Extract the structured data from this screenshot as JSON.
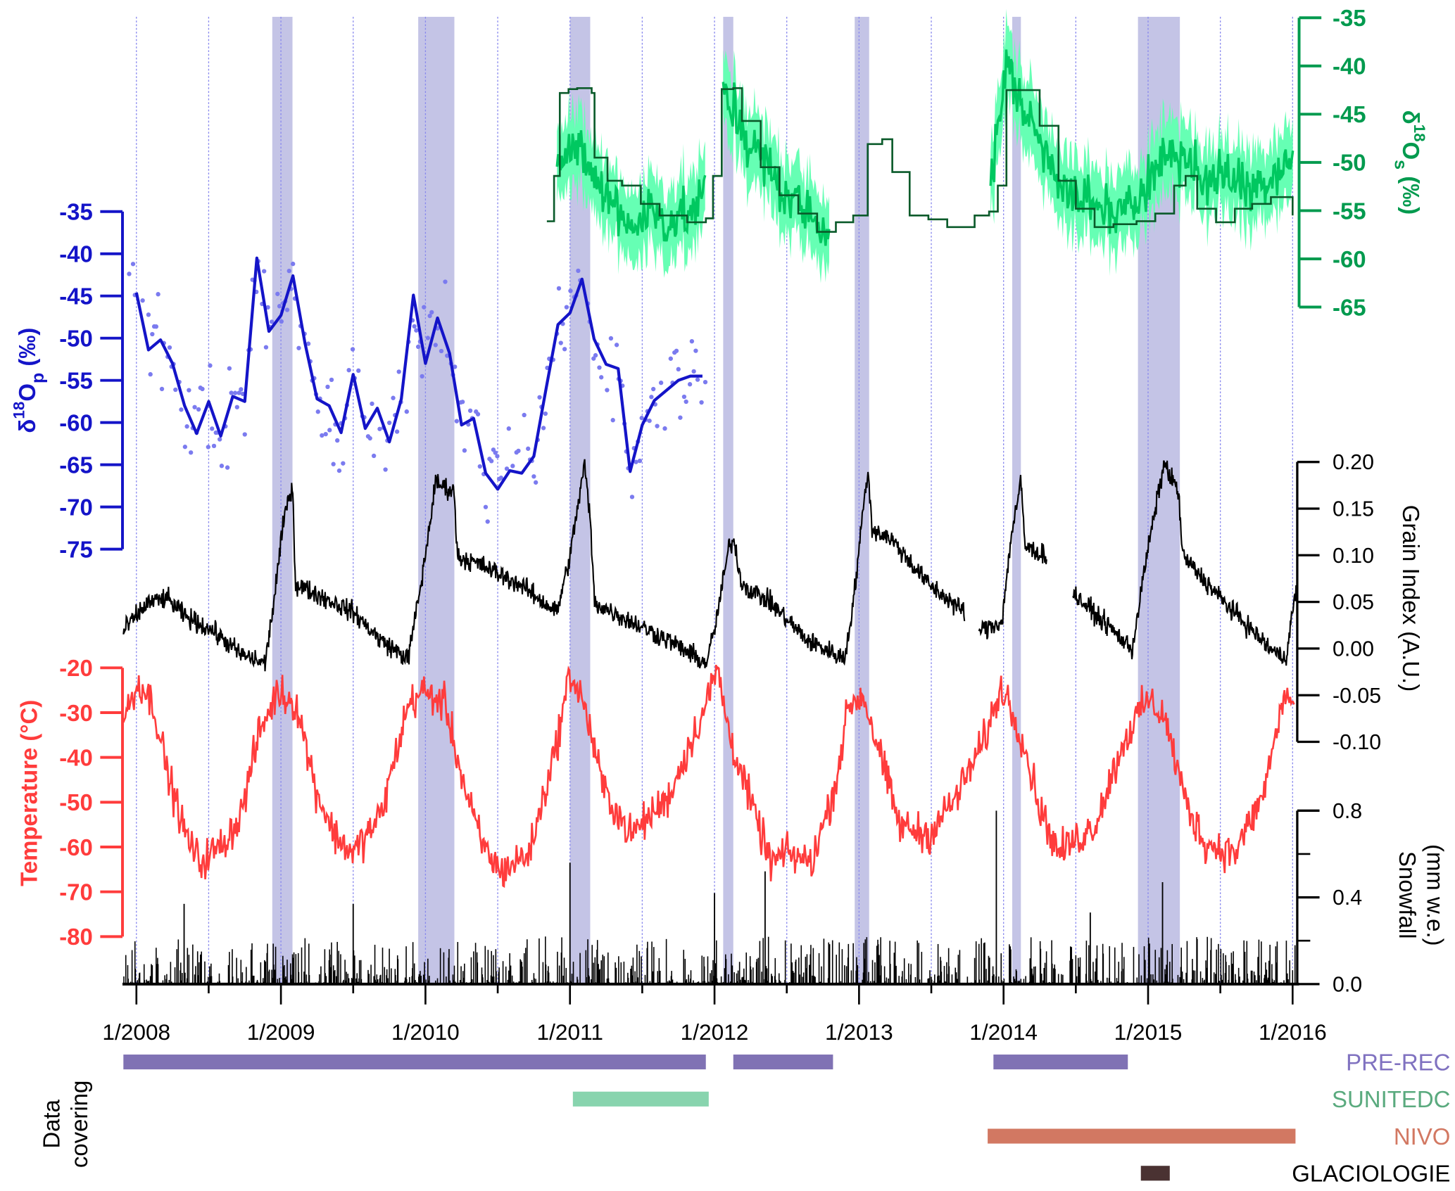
{
  "chart_data": {
    "type": "line",
    "x_axis": {
      "range": [
        2007.91,
        2016.03
      ],
      "tick_labels": [
        "1/2008",
        "1/2009",
        "1/2010",
        "1/2011",
        "1/2012",
        "1/2013",
        "1/2014",
        "1/2015",
        "1/2016"
      ],
      "tick_years": [
        2008,
        2009,
        2010,
        2011,
        2012,
        2013,
        2014,
        2015,
        2016
      ],
      "gridlines": "half-yearly dotted"
    },
    "shaded_periods": [
      [
        2008.94,
        2009.08
      ],
      [
        2009.95,
        2010.2
      ],
      [
        2011.0,
        2011.14
      ],
      [
        2012.06,
        2012.13
      ],
      [
        2012.97,
        2013.07
      ],
      [
        2014.06,
        2014.12
      ],
      [
        2014.93,
        2015.22
      ]
    ],
    "d18Op": {
      "label": {
        "prefix": "δ",
        "sup": "18",
        "main": "O",
        "sub": "p",
        "suffix": " (‰)"
      },
      "color": "#1414c8",
      "dot_color": "#7b7bef",
      "ticks": [
        -35,
        -40,
        -45,
        -50,
        -55,
        -60,
        -65,
        -70,
        -75
      ],
      "range": [
        -75,
        -35
      ],
      "monthly_start": 2008.0,
      "monthly_values": [
        -44.6,
        -51.4,
        -50.2,
        -53,
        -58,
        -61.3,
        -57.5,
        -61.6,
        -56.9,
        -57.5,
        -40.5,
        -49.2,
        -47.3,
        -42.6,
        -50.6,
        -57.2,
        -58,
        -61.2,
        -54.3,
        -60.7,
        -58.3,
        -62.3,
        -57.2,
        -44.9,
        -53,
        -47.6,
        -51.8,
        -60.3,
        -59.5,
        -66,
        -67.9,
        -65.7,
        -66,
        -64,
        -56.1,
        -48.4,
        -47,
        -43,
        -50.1,
        -53.1,
        -53.6,
        -65.8,
        -60.3,
        -57.4,
        -56.2,
        -55,
        -54.5,
        -54.5
      ]
    },
    "d18Os": {
      "label": {
        "prefix": "δ",
        "sup": "18",
        "main": "O",
        "sub": "s",
        "suffix": " (‰)"
      },
      "color": "#009a4e",
      "mean_color": "#00c860",
      "band_color": "#66ffb4",
      "model_color": "#0a5a2a",
      "ticks": [
        -35,
        -40,
        -45,
        -50,
        -55,
        -60,
        -65
      ],
      "range": [
        -65,
        -35
      ],
      "mean_segments": [
        [
          [
            2010.91,
            -49.5
          ],
          [
            2011.02,
            -48.1
          ],
          [
            2011.17,
            -51.9
          ],
          [
            2011.29,
            -54.3
          ],
          [
            2011.42,
            -56.7
          ],
          [
            2011.55,
            -54.8
          ],
          [
            2011.68,
            -56.2
          ],
          [
            2011.81,
            -55.3
          ],
          [
            2011.94,
            -53.4
          ]
        ],
        [
          [
            2012.06,
            -42.8
          ],
          [
            2012.19,
            -46.6
          ],
          [
            2012.32,
            -49.5
          ],
          [
            2012.45,
            -52.4
          ],
          [
            2012.58,
            -54.3
          ],
          [
            2012.71,
            -56.2
          ],
          [
            2012.8,
            -57.2
          ]
        ],
        [
          [
            2013.91,
            -52.4
          ],
          [
            2014.02,
            -39.9
          ],
          [
            2014.12,
            -43.7
          ],
          [
            2014.25,
            -47.6
          ],
          [
            2014.38,
            -51.4
          ],
          [
            2014.5,
            -53.8
          ],
          [
            2014.63,
            -54.3
          ],
          [
            2014.76,
            -55.3
          ],
          [
            2014.89,
            -54.8
          ],
          [
            2015.02,
            -51.0
          ],
          [
            2015.15,
            -48.6
          ],
          [
            2015.27,
            -49.5
          ],
          [
            2015.4,
            -52.4
          ],
          [
            2015.53,
            -51.4
          ],
          [
            2015.66,
            -51.9
          ],
          [
            2015.79,
            -52.4
          ],
          [
            2015.92,
            -50.0
          ],
          [
            2016.01,
            -49.5
          ]
        ]
      ],
      "band_half_width": 3,
      "model_steps": [
        [
          2010.84,
          -56.1
        ],
        [
          2010.89,
          -51.4
        ],
        [
          2010.93,
          -42.8
        ],
        [
          2010.99,
          -42.4
        ],
        [
          2011.05,
          -42.3
        ],
        [
          2011.15,
          -42.8
        ],
        [
          2011.17,
          -49.5
        ],
        [
          2011.26,
          -51.9
        ],
        [
          2011.36,
          -52.4
        ],
        [
          2011.49,
          -54.3
        ],
        [
          2011.62,
          -55.5
        ],
        [
          2011.81,
          -56.2
        ],
        [
          2011.94,
          -55.8
        ],
        [
          2011.99,
          -51.4
        ],
        [
          2012.05,
          -42.4
        ],
        [
          2012.13,
          -42.3
        ],
        [
          2012.19,
          -45.7
        ],
        [
          2012.32,
          -50.5
        ],
        [
          2012.45,
          -53.4
        ],
        [
          2012.58,
          -55.3
        ],
        [
          2012.71,
          -57.2
        ],
        [
          2012.84,
          -56.2
        ],
        [
          2012.96,
          -55.5
        ],
        [
          2013.06,
          -48.1
        ],
        [
          2013.16,
          -47.6
        ],
        [
          2013.23,
          -51.0
        ],
        [
          2013.35,
          -55.5
        ],
        [
          2013.48,
          -55.9
        ],
        [
          2013.61,
          -56.7
        ],
        [
          2013.7,
          -56.7
        ],
        [
          2013.8,
          -55.5
        ],
        [
          2013.9,
          -55.1
        ],
        [
          2013.96,
          -52.4
        ],
        [
          2014.02,
          -42.5
        ],
        [
          2014.15,
          -42.5
        ],
        [
          2014.25,
          -46.2
        ],
        [
          2014.38,
          -51.9
        ],
        [
          2014.5,
          -54.8
        ],
        [
          2014.63,
          -56.7
        ],
        [
          2014.76,
          -56.4
        ],
        [
          2014.92,
          -56.1
        ],
        [
          2015.05,
          -55.3
        ],
        [
          2015.18,
          -52.4
        ],
        [
          2015.26,
          -51.4
        ],
        [
          2015.34,
          -54.8
        ],
        [
          2015.47,
          -56.2
        ],
        [
          2015.6,
          -54.8
        ],
        [
          2015.72,
          -54.3
        ],
        [
          2015.85,
          -53.6
        ],
        [
          2016.0,
          -55.5
        ]
      ]
    },
    "grain_index": {
      "label": "Grain Index (A.U.)",
      "color": "#000000",
      "ticks": [
        "0.20",
        "0.15",
        "0.10",
        "0.05",
        "0.00",
        "-0.05",
        "-0.10"
      ],
      "range": [
        -0.1,
        0.2
      ],
      "segments": [
        [
          [
            2007.91,
            0.019
          ],
          [
            2008.08,
            0.049
          ],
          [
            2008.21,
            0.054
          ],
          [
            2008.34,
            0.034
          ],
          [
            2008.53,
            0.019
          ],
          [
            2008.72,
            -0.006
          ],
          [
            2008.89,
            -0.016
          ],
          [
            2008.95,
            0.049
          ],
          [
            2009.02,
            0.138
          ],
          [
            2009.08,
            0.178
          ],
          [
            2009.1,
            0.069
          ],
          [
            2009.24,
            0.059
          ],
          [
            2009.5,
            0.039
          ],
          [
            2009.69,
            0.009
          ],
          [
            2009.88,
            -0.011
          ],
          [
            2009.98,
            0.079
          ],
          [
            2010.07,
            0.178
          ],
          [
            2010.2,
            0.168
          ],
          [
            2010.22,
            0.099
          ],
          [
            2010.39,
            0.089
          ],
          [
            2010.65,
            0.069
          ],
          [
            2010.91,
            0.039
          ],
          [
            2011.0,
            0.099
          ],
          [
            2011.1,
            0.198
          ],
          [
            2011.14,
            0.138
          ],
          [
            2011.17,
            0.049
          ],
          [
            2011.42,
            0.029
          ],
          [
            2011.68,
            0.009
          ],
          [
            2011.94,
            -0.016
          ],
          [
            2012.0,
            0.019
          ],
          [
            2012.1,
            0.109
          ],
          [
            2012.13,
            0.118
          ],
          [
            2012.19,
            0.069
          ],
          [
            2012.39,
            0.049
          ],
          [
            2012.64,
            0.009
          ],
          [
            2012.9,
            -0.011
          ],
          [
            2012.96,
            0.049
          ],
          [
            2013.06,
            0.193
          ],
          [
            2013.09,
            0.128
          ],
          [
            2013.22,
            0.118
          ],
          [
            2013.48,
            0.069
          ],
          [
            2013.73,
            0.039
          ]
        ],
        [
          [
            2013.83,
            0.019
          ],
          [
            2013.99,
            0.029
          ],
          [
            2014.05,
            0.118
          ],
          [
            2014.12,
            0.178
          ],
          [
            2014.15,
            0.109
          ],
          [
            2014.3,
            0.099
          ]
        ],
        [
          [
            2014.48,
            0.059
          ],
          [
            2014.76,
            0.019
          ],
          [
            2014.89,
            -0.001
          ],
          [
            2014.99,
            0.099
          ],
          [
            2015.11,
            0.198
          ],
          [
            2015.21,
            0.168
          ],
          [
            2015.24,
            0.099
          ],
          [
            2015.53,
            0.049
          ],
          [
            2015.85,
            -0.001
          ],
          [
            2015.95,
            -0.011
          ],
          [
            2016.03,
            0.069
          ]
        ]
      ]
    },
    "temperature": {
      "label": "Temperature (°C)",
      "color": "#ff3c3c",
      "ticks": [
        -20,
        -30,
        -40,
        -50,
        -60,
        -70,
        -80
      ],
      "range": [
        -80,
        -20
      ],
      "anchors": [
        [
          2007.91,
          -31.4
        ],
        [
          2008.02,
          -23.1
        ],
        [
          2008.12,
          -28.3
        ],
        [
          2008.21,
          -42.8
        ],
        [
          2008.34,
          -57.3
        ],
        [
          2008.44,
          -63.5
        ],
        [
          2008.6,
          -59.3
        ],
        [
          2008.72,
          -53.1
        ],
        [
          2008.85,
          -34.5
        ],
        [
          2008.98,
          -25.2
        ],
        [
          2009.11,
          -28.3
        ],
        [
          2009.24,
          -46.9
        ],
        [
          2009.37,
          -57.3
        ],
        [
          2009.5,
          -61.4
        ],
        [
          2009.69,
          -53.1
        ],
        [
          2009.88,
          -28.3
        ],
        [
          2009.98,
          -25.2
        ],
        [
          2010.14,
          -28.3
        ],
        [
          2010.27,
          -46.9
        ],
        [
          2010.39,
          -59.3
        ],
        [
          2010.52,
          -65.5
        ],
        [
          2010.72,
          -61.4
        ],
        [
          2010.91,
          -36.6
        ],
        [
          2011.0,
          -21.0
        ],
        [
          2011.1,
          -28.3
        ],
        [
          2011.23,
          -46.9
        ],
        [
          2011.42,
          -57.3
        ],
        [
          2011.68,
          -49.0
        ],
        [
          2011.94,
          -28.3
        ],
        [
          2012.02,
          -20.0
        ],
        [
          2012.1,
          -34.5
        ],
        [
          2012.26,
          -51.1
        ],
        [
          2012.39,
          -63.5
        ],
        [
          2012.51,
          -61.4
        ],
        [
          2012.67,
          -63.5
        ],
        [
          2012.83,
          -46.9
        ],
        [
          2012.93,
          -28.3
        ],
        [
          2013.03,
          -26.2
        ],
        [
          2013.12,
          -36.6
        ],
        [
          2013.28,
          -55.2
        ],
        [
          2013.48,
          -57.3
        ],
        [
          2013.67,
          -49.0
        ],
        [
          2013.86,
          -36.6
        ],
        [
          2013.99,
          -24.1
        ],
        [
          2014.12,
          -34.5
        ],
        [
          2014.25,
          -51.1
        ],
        [
          2014.38,
          -61.4
        ],
        [
          2014.63,
          -55.2
        ],
        [
          2014.83,
          -36.6
        ],
        [
          2014.99,
          -27.2
        ],
        [
          2015.11,
          -30.4
        ],
        [
          2015.27,
          -51.1
        ],
        [
          2015.4,
          -59.3
        ],
        [
          2015.6,
          -61.4
        ],
        [
          2015.79,
          -49.0
        ],
        [
          2015.95,
          -25.2
        ],
        [
          2016.01,
          -29.3
        ]
      ]
    },
    "snowfall": {
      "label_line1": "Snowfall",
      "label_line2": "(mm w.e.)",
      "color": "#000000",
      "ticks": [
        "0.8",
        "0.4",
        "0.0"
      ],
      "minor_ticks": [
        0.6,
        0.2
      ],
      "range": [
        0,
        0.8
      ],
      "peaks": [
        [
          2008.33,
          0.37
        ],
        [
          2009.5,
          0.37
        ],
        [
          2011.0,
          0.56
        ],
        [
          2012.0,
          0.42
        ],
        [
          2012.35,
          0.52
        ],
        [
          2013.95,
          0.8
        ],
        [
          2014.6,
          0.33
        ],
        [
          2015.1,
          0.47
        ]
      ]
    },
    "coverage": {
      "title_line1": "Data",
      "title_line2": "covering",
      "datasets": [
        {
          "name": "PRE-REC",
          "color": "#8072b4",
          "text_color": "#8072c0",
          "periods": [
            [
              2007.91,
              2011.94
            ],
            [
              2012.13,
              2012.82
            ],
            [
              2013.93,
              2014.86
            ]
          ]
        },
        {
          "name": "SUNITEDC",
          "color": "#88d4ae",
          "text_color": "#5aaa7e",
          "periods": [
            [
              2011.02,
              2011.96
            ]
          ]
        },
        {
          "name": "NIVO",
          "color": "#d27862",
          "text_color": "#d27862",
          "periods": [
            [
              2013.89,
              2016.02
            ]
          ]
        },
        {
          "name": "GLACIOLOGIE",
          "color": "#4a3232",
          "text_color": "#000000",
          "periods": [
            [
              2014.95,
              2015.15
            ]
          ]
        }
      ]
    }
  }
}
